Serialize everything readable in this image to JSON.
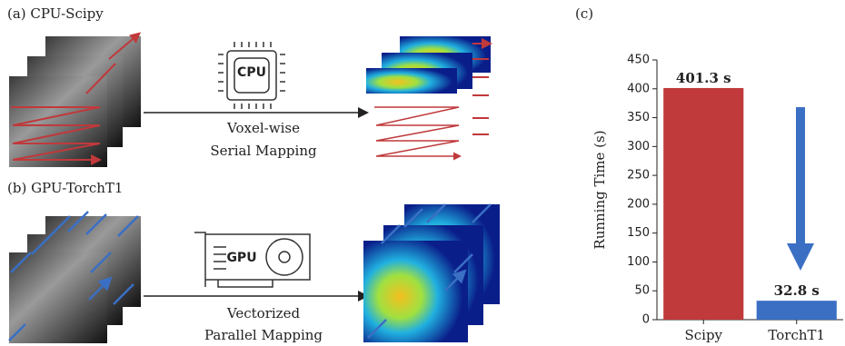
{
  "panels": {
    "a": {
      "label": "(a) CPU-Scipy",
      "chip": "CPU",
      "caption": [
        "Voxel-wise",
        "Serial Mapping"
      ]
    },
    "b": {
      "label": "(b) GPU-TorchT1",
      "chip": "GPU",
      "caption": [
        "Vectorized",
        "Parallel Mapping"
      ]
    }
  },
  "chart_data": {
    "type": "bar",
    "panel_label": "(c)",
    "y_label": "Running Time (s)",
    "categories": [
      "Scipy",
      "TorchT1"
    ],
    "values": [
      401.3,
      32.8
    ],
    "value_labels": [
      "401.3 s",
      "32.8 s"
    ],
    "colors": [
      "#c0393b",
      "#3a6fc4"
    ],
    "ylim": [
      0,
      450
    ],
    "yticks": [
      0,
      50,
      100,
      150,
      200,
      250,
      300,
      350,
      400,
      450
    ],
    "grid": false
  }
}
